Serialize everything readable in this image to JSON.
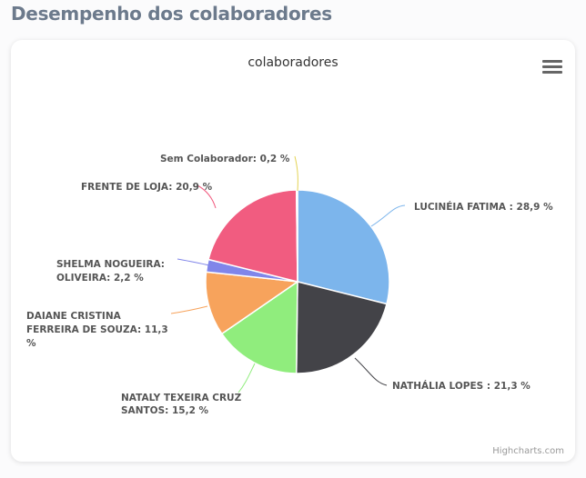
{
  "page": {
    "title": "Desempenho dos colaboradores"
  },
  "chart": {
    "title": "colaboradores",
    "menu_icon": "hamburger-menu-icon",
    "credits": "Highcharts.com"
  },
  "labels": {
    "lucineia_1": "LUCINÉIA  FATIMA  : 28,9 %",
    "nathalia_1": "NATHÁLIA  LOPES : 21,3 %",
    "nataly_1": "NATALY  TEXEIRA CRUZ",
    "nataly_2": "SANTOS: 15,2 %",
    "daiane_1": "DAIANE CRISTINA",
    "daiane_2": "FERREIRA DE SOUZA: 11,3",
    "daiane_3": "%",
    "shelma_1": "SHELMA  NOGUEIRA:",
    "shelma_2": "OLIVEIRA: 2,2 %",
    "frente_1": "FRENTE DE LOJA: 20,9 %",
    "sem_1": "Sem Colaborador: 0,2 %"
  },
  "chart_data": {
    "type": "pie",
    "title": "colaboradores",
    "categories": [
      "LUCINÉIA  FATIMA",
      "NATHÁLIA  LOPES",
      "NATALY  TEXEIRA CRUZ SANTOS",
      "DAIANE CRISTINA FERREIRA DE SOUZA",
      "SHELMA  NOGUEIRA: OLIVEIRA",
      "FRENTE DE LOJA",
      "Sem Colaborador"
    ],
    "values": [
      28.9,
      21.3,
      15.2,
      11.3,
      2.2,
      20.9,
      0.2
    ],
    "colors": [
      "#7cb5ec",
      "#434348",
      "#90ed7d",
      "#f7a35c",
      "#8085e9",
      "#f15c80",
      "#e4d354"
    ],
    "unit": "%",
    "legend": false,
    "data_labels": true
  }
}
